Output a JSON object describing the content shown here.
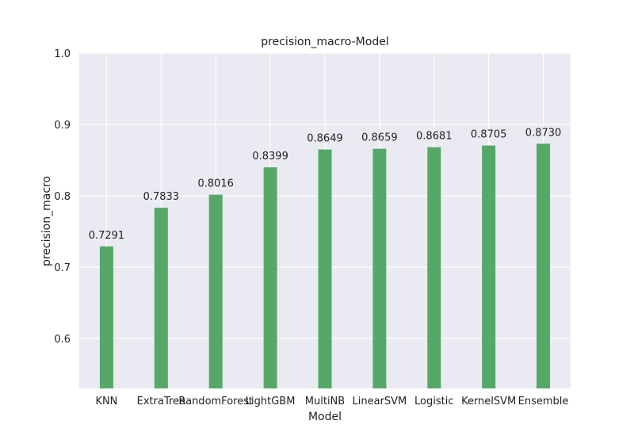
{
  "chart_data": {
    "type": "bar",
    "title": "precision_macro-Model",
    "xlabel": "Model",
    "ylabel": "precision_macro",
    "categories": [
      "KNN",
      "ExtraTree",
      "RandomForest",
      "LightGBM",
      "MultiNB",
      "LinearSVM",
      "Logistic",
      "KernelSVM",
      "Ensemble"
    ],
    "values": [
      0.7291,
      0.7833,
      0.8016,
      0.8399,
      0.8649,
      0.8659,
      0.8681,
      0.8705,
      0.873
    ],
    "data_labels": [
      "0.7291",
      "0.7833",
      "0.8016",
      "0.8399",
      "0.8649",
      "0.8659",
      "0.8681",
      "0.8705",
      "0.8730"
    ],
    "ylim": [
      0.53,
      1.0
    ],
    "yticks": [
      0.6,
      0.7,
      0.8,
      0.9,
      1.0
    ],
    "ytick_labels": [
      "0.6",
      "0.7",
      "0.8",
      "0.9",
      "1.0"
    ],
    "grid": true,
    "legend": "none",
    "colors": {
      "bar": "#55a868",
      "plot_background": "#eaeaf2",
      "grid": "#ffffff",
      "text": "#222222"
    }
  }
}
